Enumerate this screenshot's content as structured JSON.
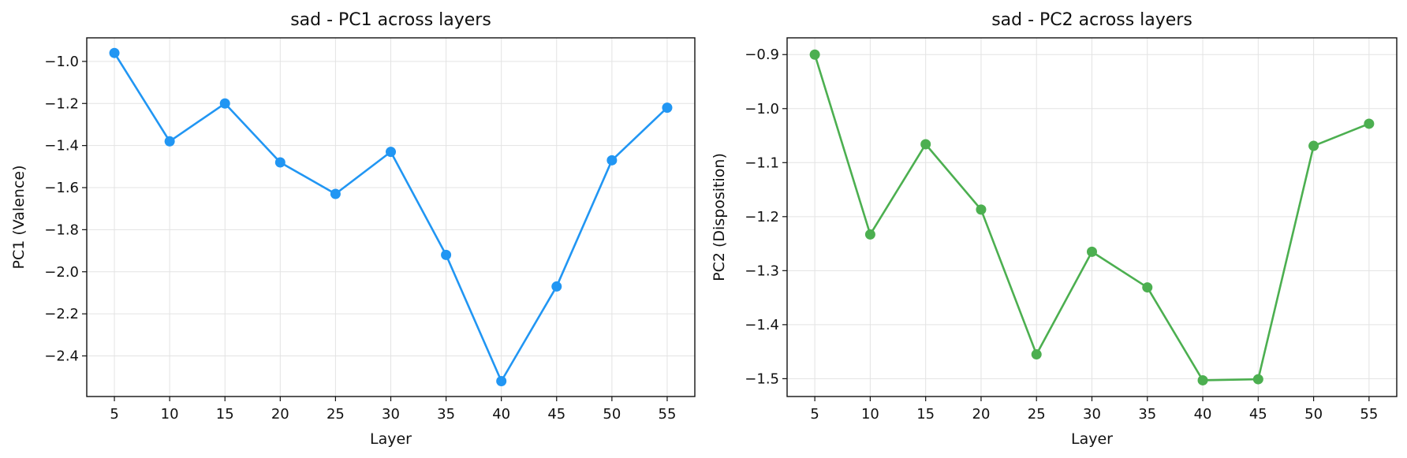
{
  "chart_data": [
    {
      "type": "line",
      "title": "sad - PC1 across layers",
      "xlabel": "Layer",
      "ylabel": "PC1 (Valence)",
      "x": [
        5,
        10,
        15,
        20,
        25,
        30,
        35,
        40,
        45,
        50,
        55
      ],
      "series": [
        {
          "color": "#2196F3",
          "values": [
            -0.96,
            -1.38,
            -1.2,
            -1.48,
            -1.63,
            -1.43,
            -1.92,
            -2.52,
            -2.07,
            -1.47,
            -1.22
          ]
        }
      ],
      "xticks": [
        5,
        10,
        15,
        20,
        25,
        30,
        35,
        40,
        45,
        50,
        55
      ],
      "yticks": [
        -1.0,
        -1.2,
        -1.4,
        -1.6,
        -1.8,
        -2.0,
        -2.2,
        -2.4
      ],
      "ytick_labels": [
        "−1.0",
        "−1.2",
        "−1.4",
        "−1.6",
        "−1.8",
        "−2.0",
        "−2.2",
        "−2.4"
      ],
      "xlim": [
        2.5,
        57.5
      ],
      "ylim": [
        -2.593,
        -0.888
      ],
      "grid": true
    },
    {
      "type": "line",
      "title": "sad - PC2 across layers",
      "xlabel": "Layer",
      "ylabel": "PC2 (Disposition)",
      "x": [
        5,
        10,
        15,
        20,
        25,
        30,
        35,
        40,
        45,
        50,
        55
      ],
      "series": [
        {
          "color": "#4CAF50",
          "values": [
            -0.9,
            -1.233,
            -1.066,
            -1.187,
            -1.455,
            -1.265,
            -1.331,
            -1.503,
            -1.501,
            -1.069,
            -1.028
          ]
        }
      ],
      "xticks": [
        5,
        10,
        15,
        20,
        25,
        30,
        35,
        40,
        45,
        50,
        55
      ],
      "yticks": [
        -0.9,
        -1.0,
        -1.1,
        -1.2,
        -1.3,
        -1.4,
        -1.5
      ],
      "ytick_labels": [
        "−0.9",
        "−1.0",
        "−1.1",
        "−1.2",
        "−1.3",
        "−1.4",
        "−1.5"
      ],
      "xlim": [
        2.5,
        57.5
      ],
      "ylim": [
        -1.533,
        -0.869
      ],
      "grid": true
    }
  ]
}
